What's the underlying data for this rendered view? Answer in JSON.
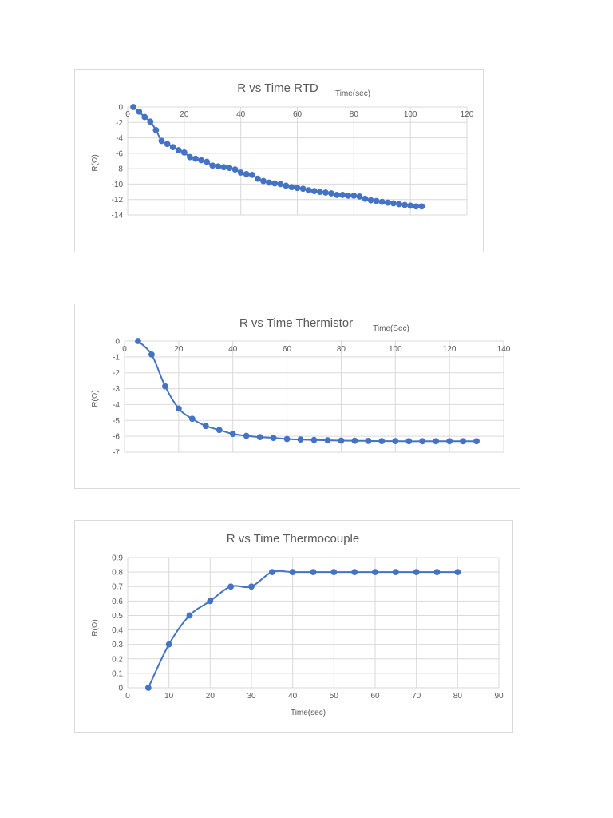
{
  "chart_data": [
    {
      "type": "scatter",
      "title": "R vs Time RTD",
      "xlabel": "Time(sec)",
      "ylabel": "R(Ω)",
      "xlim": [
        0,
        120
      ],
      "ylim": [
        -14,
        0
      ],
      "xticks": [
        "0",
        "20",
        "40",
        "60",
        "80",
        "100",
        "120"
      ],
      "yticks": [
        "0",
        "-2",
        "-4",
        "-6",
        "-8",
        "-10",
        "-12",
        "-14"
      ],
      "grid": true,
      "line_color": "#4472C4",
      "smooth": true,
      "x": [
        2,
        4,
        6,
        8,
        10,
        12,
        14,
        16,
        18,
        20,
        22,
        24,
        26,
        28,
        30,
        32,
        34,
        36,
        38,
        40,
        42,
        44,
        46,
        48,
        50,
        52,
        54,
        56,
        58,
        60,
        62,
        64,
        66,
        68,
        70,
        72,
        74,
        76,
        78,
        80,
        82,
        84,
        86,
        88,
        90,
        92,
        94,
        96,
        98,
        100,
        102,
        104
      ],
      "y": [
        0,
        -0.6,
        -1.3,
        -1.9,
        -3.0,
        -4.4,
        -4.8,
        -5.2,
        -5.6,
        -5.9,
        -6.5,
        -6.7,
        -6.9,
        -7.1,
        -7.6,
        -7.7,
        -7.8,
        -7.9,
        -8.1,
        -8.5,
        -8.7,
        -8.8,
        -9.3,
        -9.6,
        -9.8,
        -9.9,
        -10.0,
        -10.2,
        -10.4,
        -10.5,
        -10.6,
        -10.8,
        -10.9,
        -11.0,
        -11.1,
        -11.2,
        -11.4,
        -11.4,
        -11.5,
        -11.5,
        -11.6,
        -11.9,
        -12.1,
        -12.2,
        -12.3,
        -12.4,
        -12.5,
        -12.6,
        -12.7,
        -12.8,
        -12.9,
        -12.9
      ]
    },
    {
      "type": "scatter",
      "title": "R vs Time Thermistor",
      "xlabel": "Time(Sec)",
      "ylabel": "R(Ω)",
      "xlim": [
        0,
        140
      ],
      "ylim": [
        -7,
        0
      ],
      "xticks": [
        "0",
        "20",
        "40",
        "60",
        "80",
        "100",
        "120",
        "140"
      ],
      "yticks": [
        "0",
        "-1",
        "-2",
        "-3",
        "-4",
        "-5",
        "-6",
        "-7"
      ],
      "grid": true,
      "line_color": "#4472C4",
      "smooth": true,
      "x": [
        5,
        10,
        15,
        20,
        25,
        30,
        35,
        40,
        45,
        50,
        55,
        60,
        65,
        70,
        75,
        80,
        85,
        90,
        95,
        100,
        105,
        110,
        115,
        120,
        125,
        130
      ],
      "y": [
        0,
        -0.85,
        -2.85,
        -4.25,
        -4.9,
        -5.35,
        -5.6,
        -5.85,
        -5.97,
        -6.05,
        -6.1,
        -6.17,
        -6.2,
        -6.23,
        -6.25,
        -6.27,
        -6.28,
        -6.29,
        -6.3,
        -6.3,
        -6.31,
        -6.31,
        -6.31,
        -6.31,
        -6.31,
        -6.31
      ]
    },
    {
      "type": "scatter",
      "title": "R vs Time Thermocouple",
      "xlabel": "Time(sec)",
      "ylabel": "R(Ω)",
      "xlim": [
        0,
        90
      ],
      "ylim": [
        0,
        0.9
      ],
      "xticks": [
        "0",
        "10",
        "20",
        "30",
        "40",
        "50",
        "60",
        "70",
        "80",
        "90"
      ],
      "yticks": [
        "0",
        "0.1",
        "0.2",
        "0.3",
        "0.4",
        "0.5",
        "0.6",
        "0.7",
        "0.8",
        "0.9"
      ],
      "grid": true,
      "line_color": "#4472C4",
      "smooth": true,
      "x": [
        5,
        10,
        15,
        20,
        25,
        30,
        35,
        40,
        45,
        50,
        55,
        60,
        65,
        70,
        75,
        80
      ],
      "y": [
        0,
        0.3,
        0.5,
        0.6,
        0.7,
        0.7,
        0.8,
        0.8,
        0.8,
        0.8,
        0.8,
        0.8,
        0.8,
        0.8,
        0.8,
        0.8
      ]
    }
  ]
}
